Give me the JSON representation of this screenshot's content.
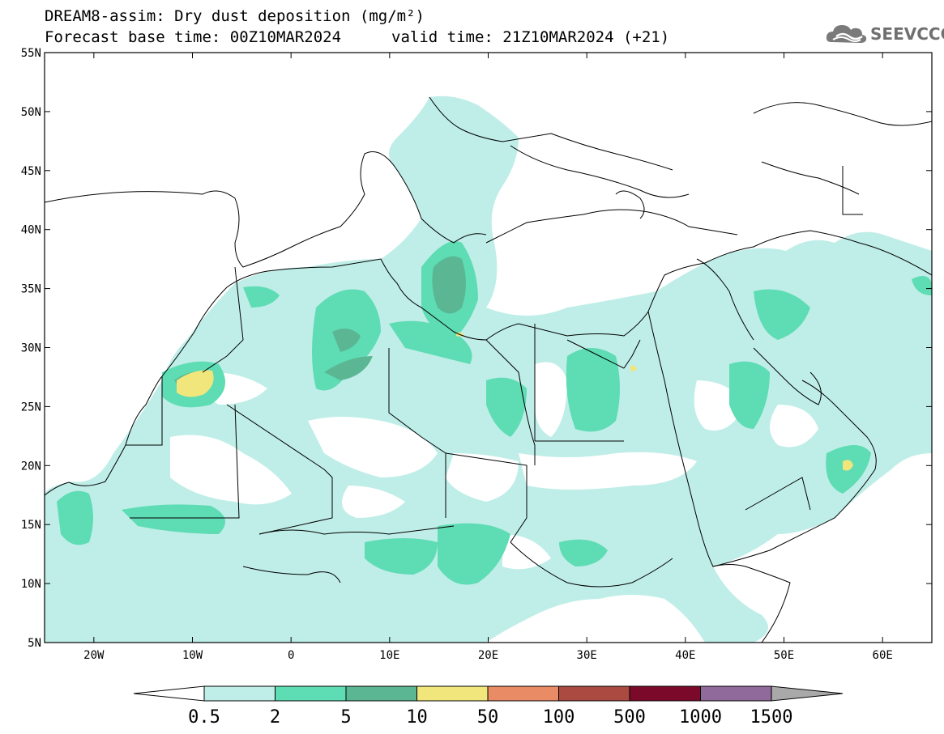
{
  "title": {
    "line1": "DREAM8-assim: Dry dust deposition (mg/m²)",
    "line2": "Forecast base time: 00Z10MAR2024",
    "valid": "valid time: 21Z10MAR2024 (+21)"
  },
  "logo": {
    "text": "SEEVCCC",
    "icon": "cloud-logo-icon"
  },
  "map": {
    "lat_labels": [
      "55N",
      "50N",
      "45N",
      "40N",
      "35N",
      "30N",
      "25N",
      "20N",
      "15N",
      "10N",
      "5N"
    ],
    "lat_values": [
      55,
      50,
      45,
      40,
      35,
      30,
      25,
      20,
      15,
      10,
      5
    ],
    "lon_labels": [
      "20W",
      "10W",
      "0",
      "10E",
      "20E",
      "30E",
      "40E",
      "50E",
      "60E"
    ],
    "lon_values": [
      -20,
      -10,
      0,
      10,
      20,
      30,
      40,
      50,
      60
    ],
    "lon_range": [
      -25,
      65
    ],
    "lat_range": [
      5,
      55
    ]
  },
  "colorbar": {
    "labels": [
      "0.5",
      "2",
      "5",
      "10",
      "50",
      "100",
      "500",
      "1000",
      "1500"
    ],
    "colors": [
      "#bfeee8",
      "#5edcb4",
      "#5bb793",
      "#f1e67c",
      "#e98c66",
      "#aa4a40",
      "#7b0a2a",
      "#8f6a9a"
    ],
    "under_color": "#ffffff",
    "over_color": "#a9a9a9"
  }
}
